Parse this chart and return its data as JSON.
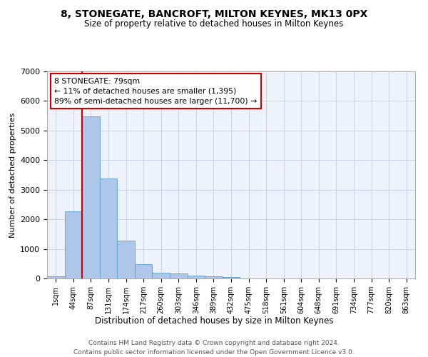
{
  "title": "8, STONEGATE, BANCROFT, MILTON KEYNES, MK13 0PX",
  "subtitle": "Size of property relative to detached houses in Milton Keynes",
  "xlabel": "Distribution of detached houses by size in Milton Keynes",
  "ylabel": "Number of detached properties",
  "footnote1": "Contains HM Land Registry data © Crown copyright and database right 2024.",
  "footnote2": "Contains public sector information licensed under the Open Government Licence v3.0.",
  "bar_labels": [
    "1sqm",
    "44sqm",
    "87sqm",
    "131sqm",
    "174sqm",
    "217sqm",
    "260sqm",
    "303sqm",
    "346sqm",
    "389sqm",
    "432sqm",
    "475sqm",
    "518sqm",
    "561sqm",
    "604sqm",
    "648sqm",
    "691sqm",
    "734sqm",
    "777sqm",
    "820sqm",
    "863sqm"
  ],
  "bar_values": [
    70,
    2270,
    5480,
    3390,
    1290,
    490,
    200,
    170,
    100,
    65,
    50,
    0,
    0,
    0,
    0,
    0,
    0,
    0,
    0,
    0,
    0
  ],
  "bar_color": "#aec6e8",
  "bar_edge_color": "#5a9fd4",
  "ylim": [
    0,
    7000
  ],
  "yticks": [
    0,
    1000,
    2000,
    3000,
    4000,
    5000,
    6000,
    7000
  ],
  "annotation_line1": "8 STONEGATE: 79sqm",
  "annotation_line2": "← 11% of detached houses are smaller (1,395)",
  "annotation_line3": "89% of semi-detached houses are larger (11,700) →",
  "vline_x": 1.5,
  "vline_color": "#cc0000",
  "box_color": "#cc0000",
  "bg_color": "#eef3fb",
  "grid_color": "#c8d4e8"
}
